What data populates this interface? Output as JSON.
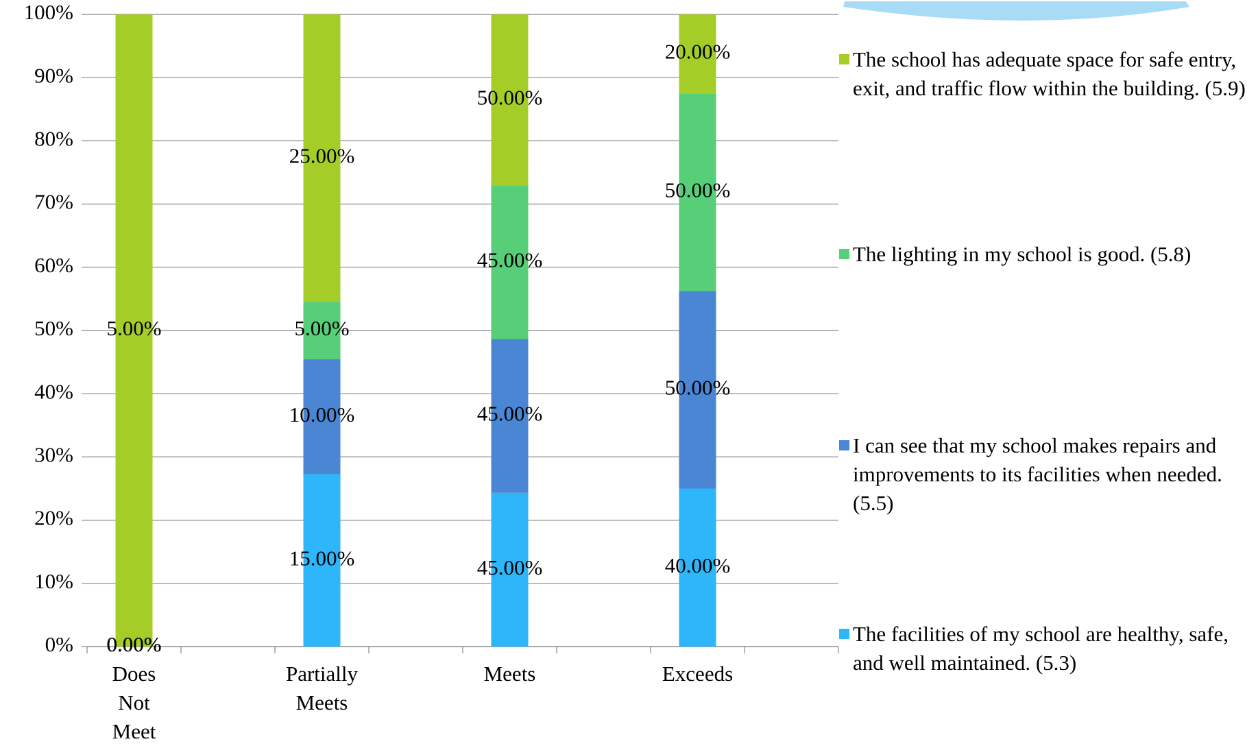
{
  "chart_data": {
    "type": "bar",
    "stacked": "percent",
    "categories": [
      "Does Not Meet",
      "Partially Meets",
      "Meets",
      "Exceeds"
    ],
    "series": [
      {
        "name": "The facilities of my school are healthy, safe, and well maintained. (5.3)",
        "color": "#2db6fa",
        "values": [
          0,
          15,
          45,
          40
        ],
        "value_labels": [
          "0.00%",
          "15.00%",
          "45.00%",
          "40.00%"
        ]
      },
      {
        "name": "I can see that my school makes repairs and improvements to its facilities when needed. (5.5)",
        "color": "#4a86d4",
        "values": [
          0,
          10,
          45,
          50
        ],
        "value_labels": [
          "0.00%",
          "10.00%",
          "45.00%",
          "50.00%"
        ]
      },
      {
        "name": "The lighting in my school is good. (5.8)",
        "color": "#57ce78",
        "values": [
          0,
          5,
          45,
          50
        ],
        "value_labels": [
          "0.00%",
          "5.00%",
          "45.00%",
          "50.00%"
        ]
      },
      {
        "name": "The school has adequate space for safe entry, exit, and traffic flow within the building. (5.9)",
        "color": "#a5cd28",
        "values": [
          5,
          25,
          50,
          20
        ],
        "value_labels": [
          "5.00%",
          "25.00%",
          "50.00%",
          "20.00%"
        ]
      }
    ],
    "ylim": [
      0,
      100
    ],
    "yticks": [
      {
        "value": 0,
        "label": "0%"
      },
      {
        "value": 10,
        "label": "10%"
      },
      {
        "value": 20,
        "label": "20%"
      },
      {
        "value": 30,
        "label": "30%"
      },
      {
        "value": 40,
        "label": "40%"
      },
      {
        "value": 50,
        "label": "50%"
      },
      {
        "value": 60,
        "label": "60%"
      },
      {
        "value": 70,
        "label": "70%"
      },
      {
        "value": 80,
        "label": "80%"
      },
      {
        "value": 90,
        "label": "90%"
      },
      {
        "value": 100,
        "label": "100%"
      }
    ],
    "grid": true,
    "legend": "right"
  }
}
